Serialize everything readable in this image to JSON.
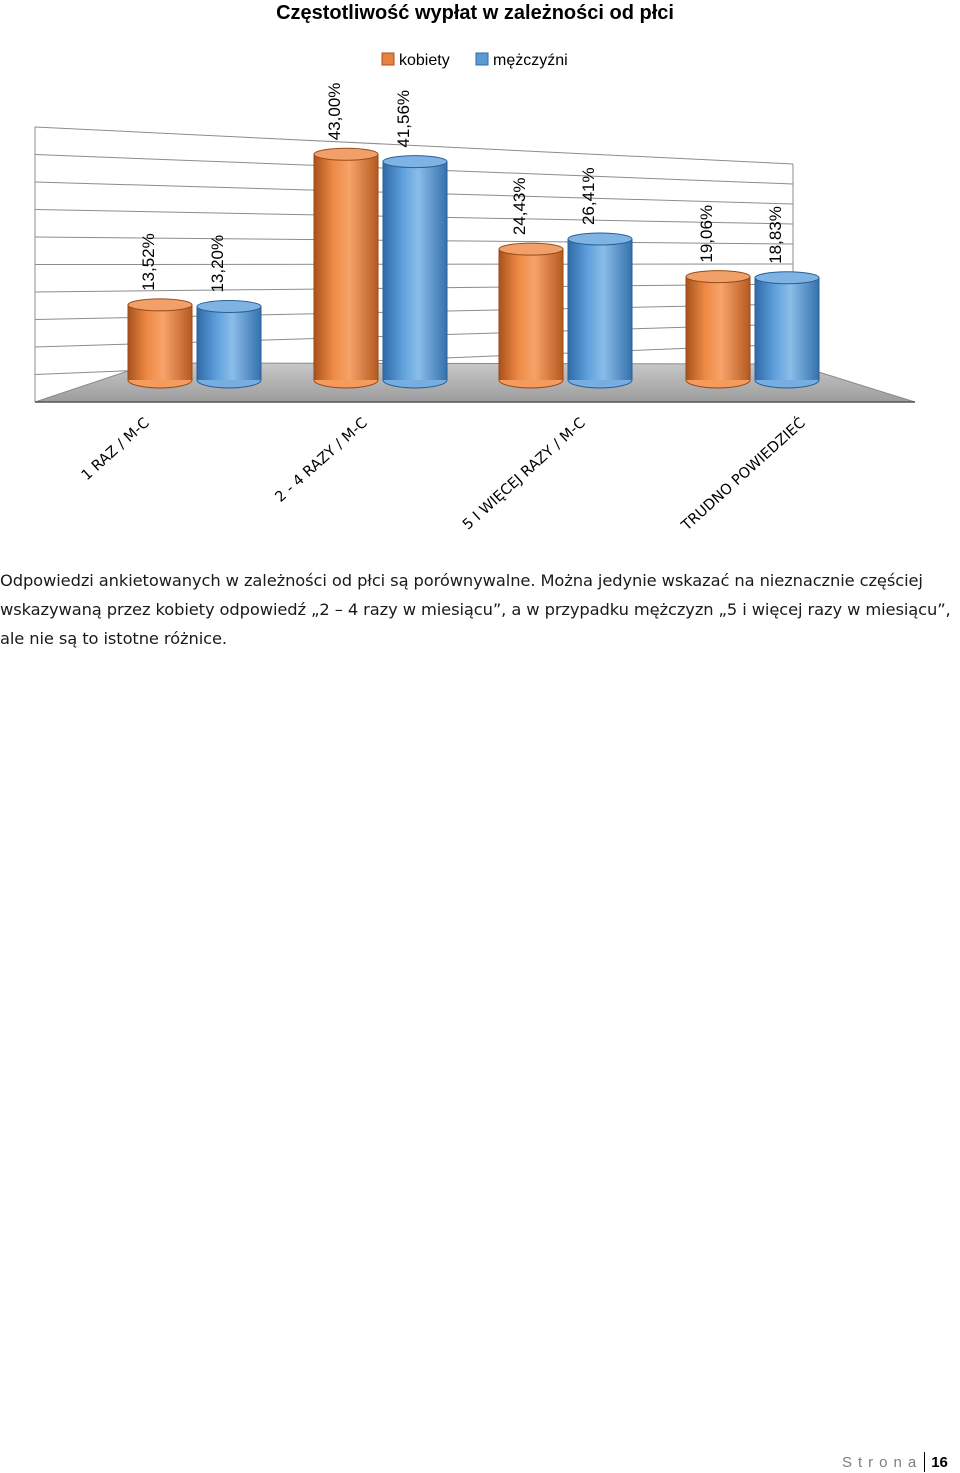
{
  "chart_data": {
    "type": "bar",
    "title": "Częstotliwość wypłat w zależności od płci",
    "categories": [
      "1 RAZ / M-C",
      "2 - 4 RAZY / M-C",
      "5 I WIĘCEJ RAZY / M-C",
      "TRUDNO POWIEDZIEĆ"
    ],
    "series": [
      {
        "name": "kobiety",
        "values": [
          13.52,
          43.0,
          24.43,
          19.06
        ],
        "labels": [
          "13,52%",
          "43,00%",
          "24,43%",
          "19,06%"
        ]
      },
      {
        "name": "mężczyźni",
        "values": [
          13.2,
          41.56,
          26.41,
          18.83
        ],
        "labels": [
          "13,20%",
          "41,56%",
          "26,41%",
          "18,83%"
        ]
      }
    ],
    "ylim": [
      0,
      50
    ],
    "grid": true,
    "legend": "top"
  },
  "colors": {
    "kobiety": "#e8823f",
    "mezczyzni": "#5b9bd5",
    "floor": "#a6a6a6"
  },
  "body_text": "Odpowiedzi ankietowanych w zależności od płci są porównywalne. Można jedynie wskazać na nieznacznie częściej wskazywaną przez kobiety odpowiedź „2 – 4 razy w miesiącu”, a w przypadku mężczyzn „5 i więcej razy w miesiącu”, ale nie są to istotne różnice.",
  "footer": {
    "label": "Strona",
    "page": "16"
  }
}
